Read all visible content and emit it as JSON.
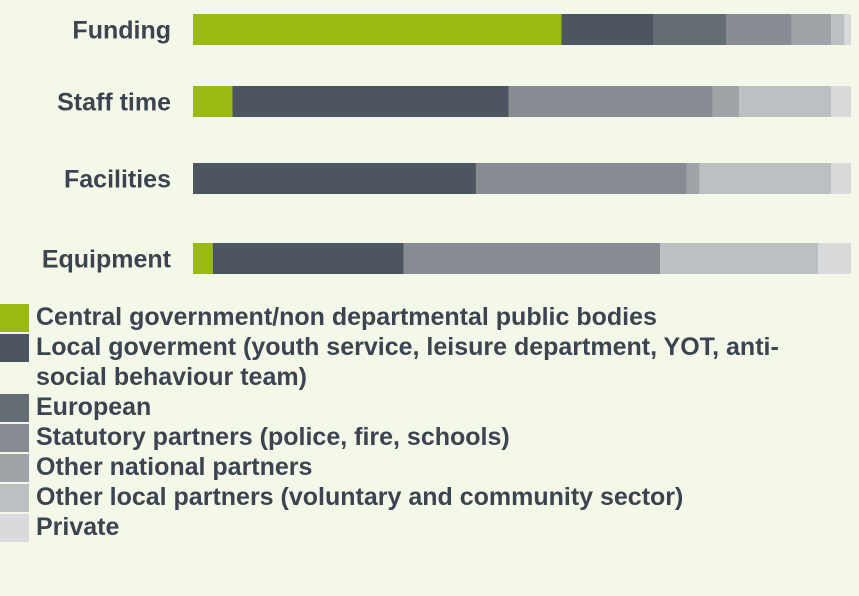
{
  "chart_data": {
    "type": "bar",
    "orientation": "horizontal",
    "stacked": true,
    "percent": true,
    "categories": [
      "Funding",
      "Staff time",
      "Facilities",
      "Equipment"
    ],
    "series": [
      {
        "name": "Central government/non departmental public bodies",
        "color": "#99bb11",
        "values": [
          56,
          6,
          0,
          3
        ]
      },
      {
        "name": "Local goverment (youth service, leisure department, YOT, anti-social behaviour team)",
        "color": "#4c5560",
        "values": [
          14,
          42,
          43,
          29
        ]
      },
      {
        "name": "European",
        "color": "#646c74",
        "values": [
          11,
          0,
          0,
          0
        ]
      },
      {
        "name": "Statutory partners (police, fire, schools)",
        "color": "#868c92",
        "values": [
          10,
          31,
          32,
          39
        ]
      },
      {
        "name": "Other national partners",
        "color": "#a0a4a8",
        "values": [
          6,
          4,
          2,
          0
        ]
      },
      {
        "name": "Other local partners (voluntary and community sector)",
        "color": "#bdc0c3",
        "values": [
          2,
          14,
          20,
          24
        ]
      },
      {
        "name": "Private",
        "color": "#d8dadb",
        "values": [
          1,
          3,
          3,
          5
        ]
      }
    ],
    "xlim": [
      0,
      100
    ],
    "grid": false,
    "legend_position": "bottom"
  }
}
